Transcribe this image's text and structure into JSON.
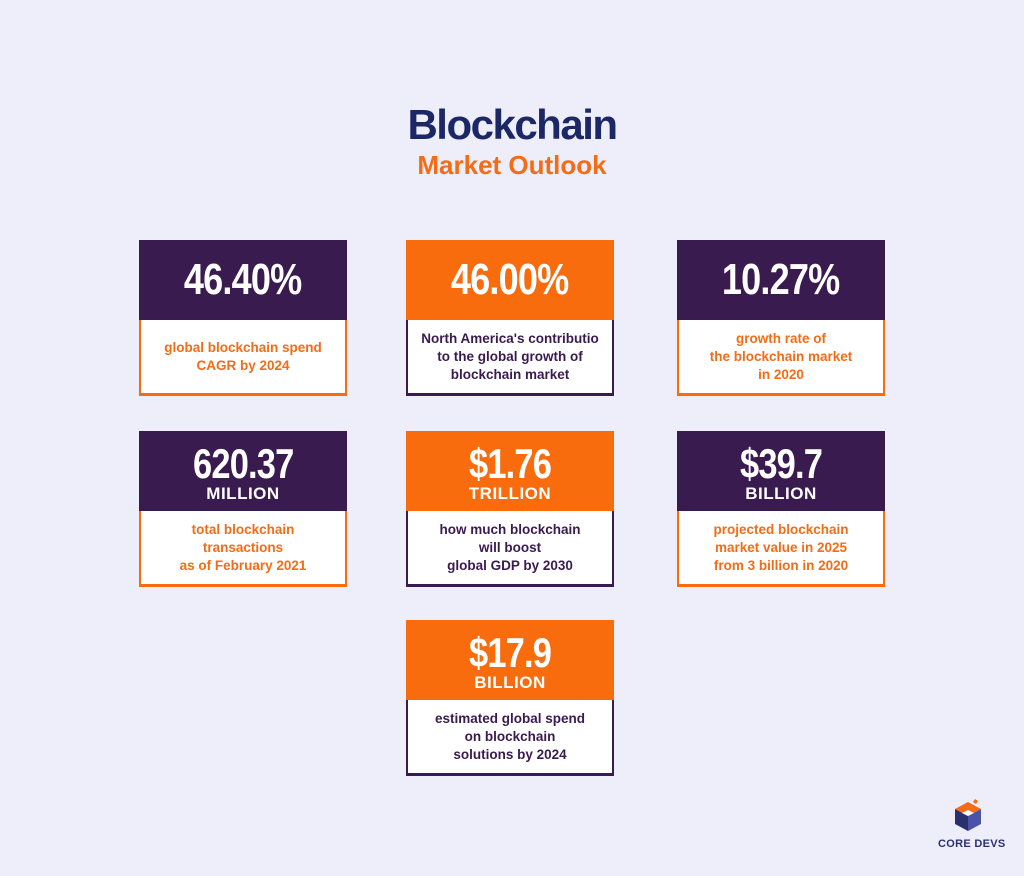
{
  "header": {
    "title": "Blockchain",
    "subtitle": "Market Outlook"
  },
  "cards": [
    {
      "value": "46.40%",
      "unit": "",
      "description": "global blockchain spend\nCAGR by 2024",
      "style": "dark"
    },
    {
      "value": "46.00%",
      "unit": "",
      "description": "North America's contributio\nto the global growth of\nblockchain market",
      "style": "orange"
    },
    {
      "value": "10.27%",
      "unit": "",
      "description": "growth rate of\nthe blockchain market\nin 2020",
      "style": "dark"
    },
    {
      "value": "620.37",
      "unit": "MILLION",
      "description": "total blockchain\ntransactions\nas of February 2021",
      "style": "dark"
    },
    {
      "value": "$1.76",
      "unit": "TRILLION",
      "description": "how much blockchain\nwill boost\nglobal GDP by 2030",
      "style": "orange"
    },
    {
      "value": "$39.7",
      "unit": "BILLION",
      "description": "projected blockchain\nmarket value in 2025\nfrom 3 billion in 2020",
      "style": "dark"
    },
    {
      "value": "$17.9",
      "unit": "BILLION",
      "description": "estimated global spend\non blockchain\nsolutions by 2024",
      "style": "orange"
    }
  ],
  "logo": {
    "text": "CORE DEVS",
    "icon": "core-devs-logo-icon"
  },
  "colors": {
    "background": "#eeeefa",
    "dark_purple": "#3a1b4f",
    "orange": "#f96c0d",
    "navy": "#1c2866"
  }
}
